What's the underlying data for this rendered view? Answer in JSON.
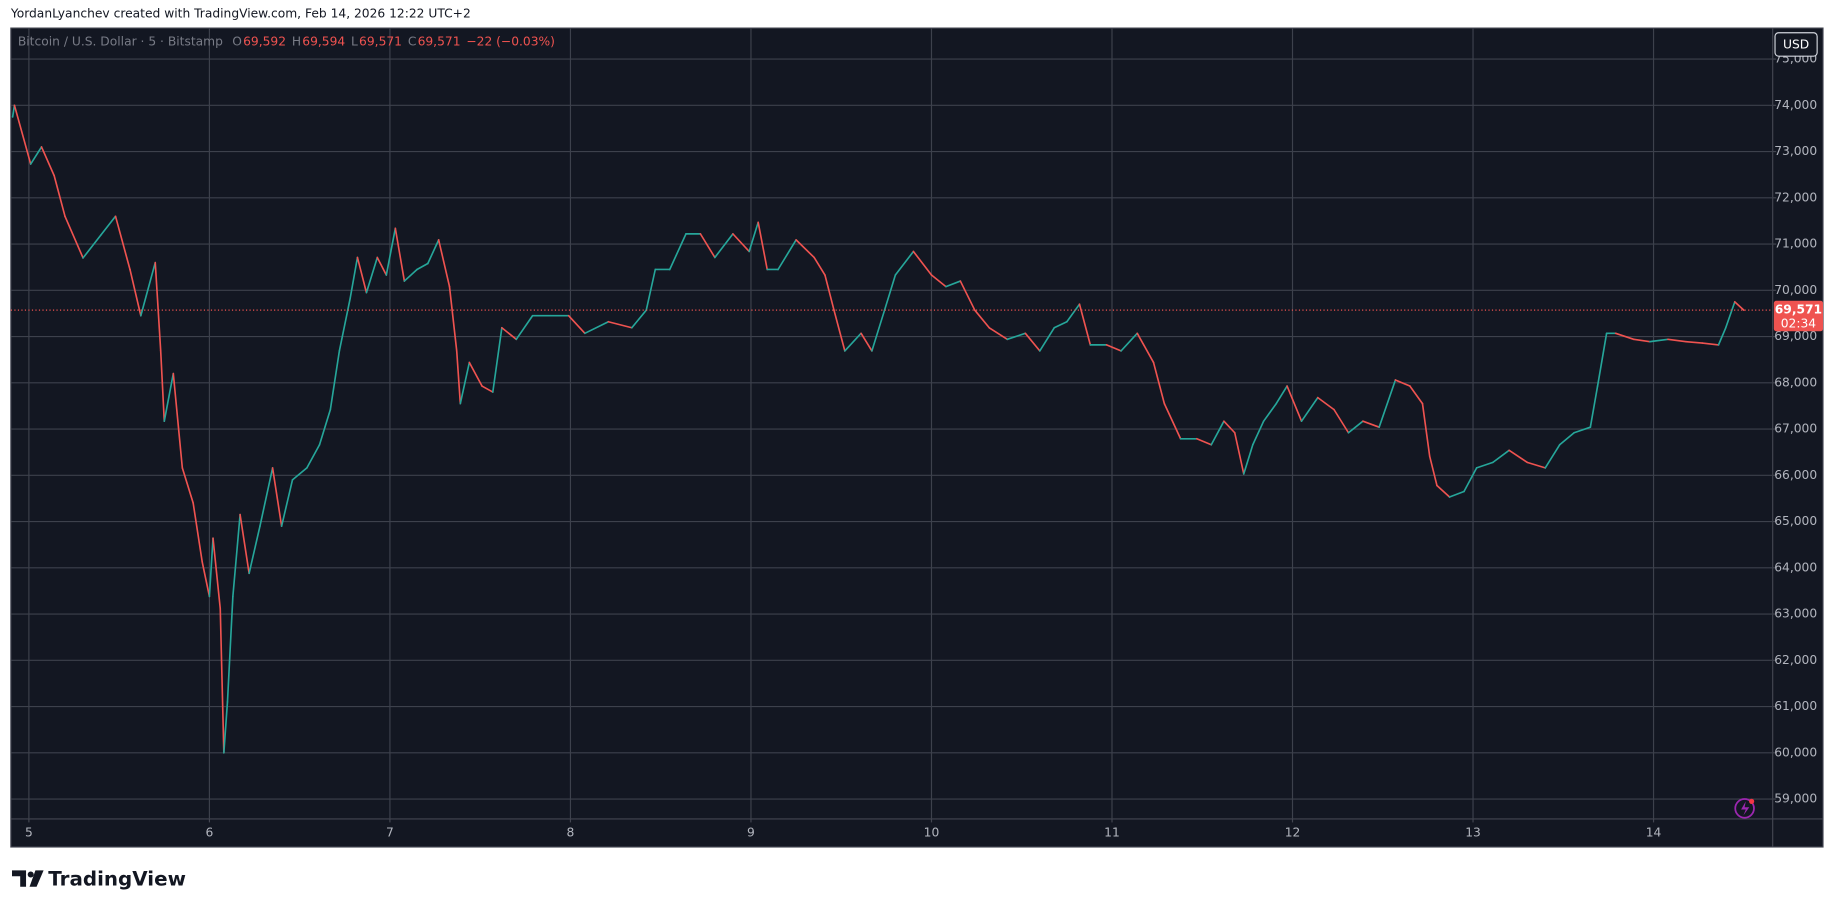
{
  "header": {
    "credit": "YordanLyanchev created with TradingView.com, Feb 14, 2026 12:22 UTC+2"
  },
  "footer": {
    "logo": "TradingView"
  },
  "chart_data": {
    "type": "line",
    "title": "Bitcoin / U.S. Dollar · 5 · Bitstamp",
    "ohlc": [
      {
        "key": "O",
        "value": "69,592"
      },
      {
        "key": "H",
        "value": "69,594"
      },
      {
        "key": "L",
        "value": "69,571"
      },
      {
        "key": "C",
        "value": "69,571"
      }
    ],
    "change": "−22 (−0.03%)",
    "currency": "USD",
    "last_price": {
      "value": 69571,
      "label": "69,571"
    },
    "countdown": "02:34",
    "up_color": "#26a69a",
    "down_color": "#ef5350",
    "grid": true,
    "xlim": [
      4.9,
      14.66
    ],
    "xticks": [
      5,
      6,
      7,
      8,
      9,
      10,
      11,
      12,
      13,
      14
    ],
    "ylim": [
      58570,
      75670
    ],
    "yticks": [
      {
        "value": 59000,
        "label": "59,000"
      },
      {
        "value": 60000,
        "label": "60,000"
      },
      {
        "value": 61000,
        "label": "61,000"
      },
      {
        "value": 62000,
        "label": "62,000"
      },
      {
        "value": 63000,
        "label": "63,000"
      },
      {
        "value": 64000,
        "label": "64,000"
      },
      {
        "value": 65000,
        "label": "65,000"
      },
      {
        "value": 66000,
        "label": "66,000"
      },
      {
        "value": 67000,
        "label": "67,000"
      },
      {
        "value": 68000,
        "label": "68,000"
      },
      {
        "value": 69000,
        "label": "69,000"
      },
      {
        "value": 70000,
        "label": "70,000"
      },
      {
        "value": 71000,
        "label": "71,000"
      },
      {
        "value": 72000,
        "label": "72,000"
      },
      {
        "value": 73000,
        "label": "73,000"
      },
      {
        "value": 74000,
        "label": "74,000"
      },
      {
        "value": 75000,
        "label": "75,000"
      }
    ],
    "x": [
      4.91,
      4.92,
      5.01,
      5.07,
      5.14,
      5.2,
      5.3,
      5.4,
      5.48,
      5.56,
      5.62,
      5.7,
      5.73,
      5.75,
      5.8,
      5.85,
      5.91,
      5.96,
      6.0,
      6.02,
      6.06,
      6.08,
      6.1,
      6.13,
      6.17,
      6.22,
      6.28,
      6.35,
      6.4,
      6.46,
      6.54,
      6.61,
      6.67,
      6.72,
      6.78,
      6.82,
      6.87,
      6.93,
      6.98,
      7.03,
      7.08,
      7.15,
      7.21,
      7.27,
      7.33,
      7.37,
      7.39,
      7.44,
      7.51,
      7.57,
      7.62,
      7.7,
      7.79,
      7.89,
      7.99,
      8.08,
      8.21,
      8.34,
      8.42,
      8.47,
      8.55,
      8.64,
      8.72,
      8.8,
      8.9,
      8.99,
      9.04,
      9.09,
      9.15,
      9.25,
      9.35,
      9.41,
      9.46,
      9.52,
      9.61,
      9.67,
      9.74,
      9.8,
      9.9,
      10.0,
      10.08,
      10.16,
      10.24,
      10.32,
      10.42,
      10.52,
      10.6,
      10.68,
      10.75,
      10.82,
      10.88,
      10.97,
      11.05,
      11.14,
      11.23,
      11.29,
      11.38,
      11.47,
      11.55,
      11.62,
      11.68,
      11.73,
      11.78,
      11.84,
      11.91,
      11.97,
      12.05,
      12.14,
      12.23,
      12.31,
      12.39,
      12.48,
      12.57,
      12.65,
      12.72,
      12.76,
      12.8,
      12.87,
      12.95,
      13.02,
      13.11,
      13.2,
      13.3,
      13.4,
      13.48,
      13.56,
      13.65,
      13.69,
      13.74,
      13.79,
      13.89,
      13.98,
      14.08,
      14.18,
      14.27,
      14.36,
      14.4,
      14.45,
      14.5
    ],
    "values": [
      73750,
      74000,
      72730,
      73100,
      72480,
      71600,
      70700,
      71200,
      71600,
      70450,
      69450,
      70600,
      68700,
      67170,
      68200,
      66160,
      65400,
      64130,
      63380,
      64640,
      63120,
      60000,
      61100,
      63380,
      65150,
      63880,
      64900,
      66160,
      64900,
      65900,
      66160,
      66660,
      67420,
      68690,
      69830,
      70710,
      69950,
      70710,
      70330,
      71340,
      70200,
      70450,
      70580,
      71090,
      70080,
      68690,
      67550,
      68440,
      67930,
      67800,
      69190,
      68940,
      69450,
      69450,
      69450,
      69070,
      69320,
      69190,
      69570,
      70450,
      70450,
      71220,
      71220,
      70710,
      71220,
      70840,
      71470,
      70450,
      70450,
      71090,
      70710,
      70330,
      69570,
      68690,
      69070,
      68690,
      69570,
      70330,
      70840,
      70330,
      70080,
      70200,
      69570,
      69190,
      68940,
      69070,
      68690,
      69190,
      69320,
      69700,
      68820,
      68820,
      68690,
      69070,
      68440,
      67550,
      66790,
      66790,
      66660,
      67170,
      66920,
      66030,
      66660,
      67170,
      67550,
      67930,
      67170,
      67680,
      67420,
      66920,
      67170,
      67040,
      68060,
      67930,
      67550,
      66410,
      65780,
      65530,
      65650,
      66160,
      66280,
      66540,
      66280,
      66160,
      66660,
      66920,
      67040,
      67930,
      69070,
      69070,
      68940,
      68890,
      68940,
      68890,
      68860,
      68820,
      69190,
      69750,
      69571
    ]
  }
}
